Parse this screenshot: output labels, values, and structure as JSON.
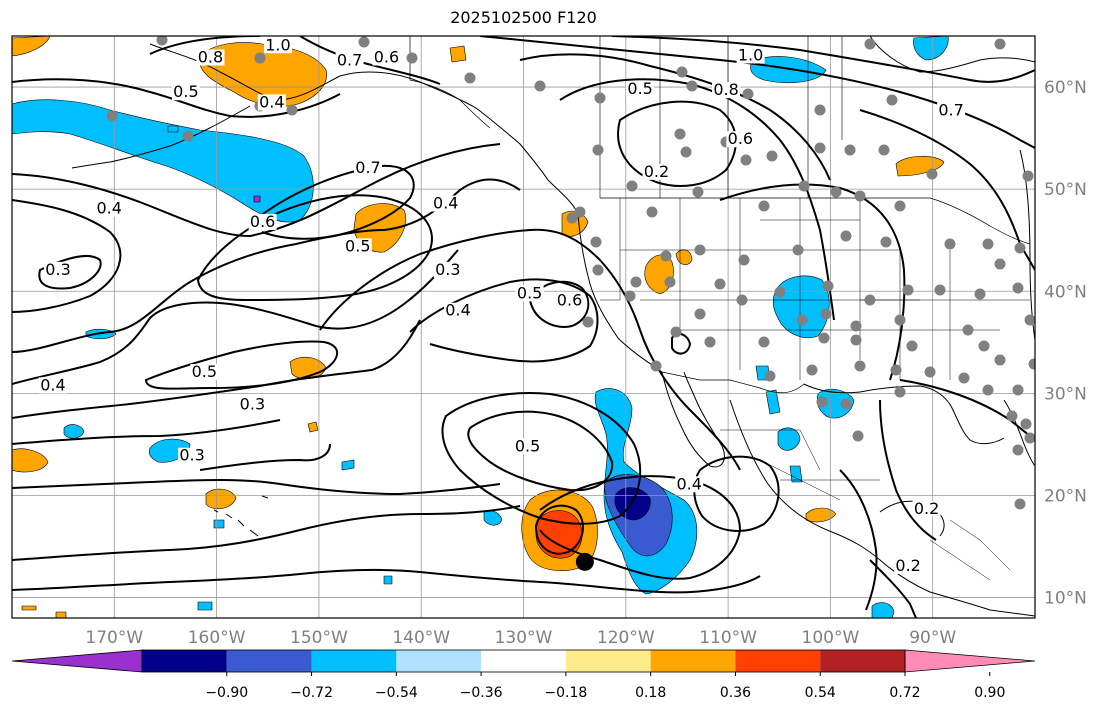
{
  "title": "2025102500 F120",
  "map": {
    "projection": "plate-carree",
    "lon_range": [
      -180,
      -80
    ],
    "lat_range": [
      8,
      65
    ],
    "lat_labels": [
      "60°N",
      "50°N",
      "40°N",
      "30°N",
      "20°N",
      "10°N"
    ],
    "lat_values": [
      60,
      50,
      40,
      30,
      20,
      10
    ],
    "lon_labels": [
      "170°W",
      "160°W",
      "150°W",
      "140°W",
      "130°W",
      "120°W",
      "110°W",
      "100°W",
      "90°W"
    ],
    "lon_values": [
      -170,
      -160,
      -150,
      -140,
      -130,
      -120,
      -110,
      -100,
      -90
    ],
    "grid": true,
    "station_marker_color": "#808080",
    "storm_center": {
      "lon": -124,
      "lat": 13.5,
      "color": "#000000"
    }
  },
  "colorbar": {
    "ticks": [
      "−0.90",
      "−0.72",
      "−0.54",
      "−0.36",
      "−0.18",
      "0.18",
      "0.36",
      "0.54",
      "0.72",
      "0.90"
    ],
    "colors": [
      "#9b30d0",
      "#00008b",
      "#3a5bcf",
      "#00bfff",
      "#b0e2ff",
      "#ffffff",
      "#ffeb8a",
      "#ffa500",
      "#ff4000",
      "#b22222",
      "#ff8cb4"
    ],
    "extend": "both"
  },
  "contour_labels": [
    {
      "text": "1.0",
      "lon": -154,
      "lat": 63.8
    },
    {
      "text": "0.8",
      "lon": -160.6,
      "lat": 62.6
    },
    {
      "text": "0.7",
      "lon": -147,
      "lat": 62.3
    },
    {
      "text": "0.6",
      "lon": -143.4,
      "lat": 62.6
    },
    {
      "text": "0.5",
      "lon": -163,
      "lat": 59.2
    },
    {
      "text": "0.4",
      "lon": -154.6,
      "lat": 58.2
    },
    {
      "text": "0.7",
      "lon": -145.2,
      "lat": 51.8
    },
    {
      "text": "0.6",
      "lon": -155.5,
      "lat": 46.5
    },
    {
      "text": "0.5",
      "lon": -146.2,
      "lat": 44.1
    },
    {
      "text": "0.4",
      "lon": -137.6,
      "lat": 48.3
    },
    {
      "text": "0.3",
      "lon": -137.4,
      "lat": 41.8
    },
    {
      "text": "0.4",
      "lon": -136.4,
      "lat": 37.8
    },
    {
      "text": "0.4",
      "lon": -170.5,
      "lat": 47.8
    },
    {
      "text": "0.3",
      "lon": -175.5,
      "lat": 41.8
    },
    {
      "text": "0.5",
      "lon": -129.4,
      "lat": 39.5
    },
    {
      "text": "0.6",
      "lon": -125.5,
      "lat": 38.8
    },
    {
      "text": "0.5",
      "lon": -161.2,
      "lat": 31.8
    },
    {
      "text": "0.4",
      "lon": -176,
      "lat": 30.5
    },
    {
      "text": "0.3",
      "lon": -156.5,
      "lat": 28.6
    },
    {
      "text": "0.3",
      "lon": -162.4,
      "lat": 23.6
    },
    {
      "text": "0.5",
      "lon": -129.6,
      "lat": 24.5
    },
    {
      "text": "0.4",
      "lon": -113.8,
      "lat": 20.8
    },
    {
      "text": "0.5",
      "lon": -118.6,
      "lat": 59.5
    },
    {
      "text": "0.8",
      "lon": -110.2,
      "lat": 59.4
    },
    {
      "text": "1.0",
      "lon": -107.8,
      "lat": 62.8
    },
    {
      "text": "0.6",
      "lon": -108.8,
      "lat": 54.6
    },
    {
      "text": "0.7",
      "lon": -88.2,
      "lat": 57.4
    },
    {
      "text": "0.2",
      "lon": -117,
      "lat": 51.4
    },
    {
      "text": "0.2",
      "lon": -90.6,
      "lat": 18.4
    },
    {
      "text": "0.2",
      "lon": -92.4,
      "lat": 12.8
    }
  ]
}
